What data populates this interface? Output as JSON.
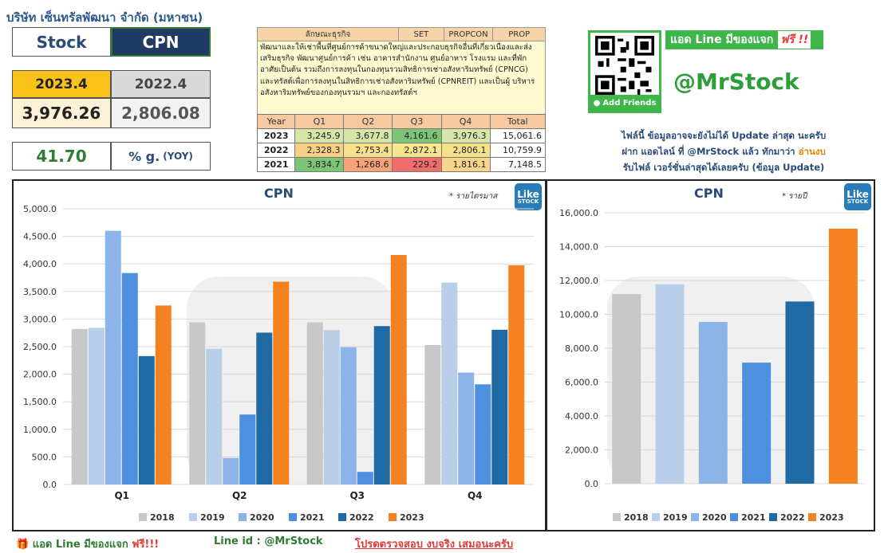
{
  "company": {
    "name": "บริษัท เซ็นทรัลพัฒนา จำกัด (มหาชน)"
  },
  "stock": {
    "label": "Stock",
    "code": "CPN"
  },
  "quarters": {
    "current_label": "2023.4",
    "previous_label": "2022.4",
    "current_value": "3,976.26",
    "previous_value": "2,806.08"
  },
  "growth": {
    "value": "41.70",
    "label": "% g.",
    "suffix": "(YOY)"
  },
  "business": {
    "headers": [
      "ลักษณะธุรกิจ",
      "SET",
      "PROPCON",
      "PROP"
    ],
    "description": "พัฒนาและให้เช่าพื้นที่ศูนย์การค้าขนาดใหญ่และประกอบธุรกิจอื่นที่เกี่ยวเนื่องและส่งเสริมธุรกิจ พัฒนาศูนย์การค้า เช่น อาคารสำนักงาน ศูนย์อาหาร โรงแรม และที่พักอาศัยเป็นต้น รวมถึงการลงทุนในกองทุนรวมสิทธิการเช่าอสังหาริมทรัพย์ (CPNCG) และทรัสต์เพื่อการลงทุนในสิทธิการเช่าอสังหาริมทรัพย์ (CPNREIT) และเป็นผู้ บริหารอสังหาริมทรัพย์ของกองทุนรวมฯ และกองทรัสต์ฯ"
  },
  "financials": {
    "headers": [
      "Year",
      "Q1",
      "Q2",
      "Q3",
      "Q4",
      "Total"
    ],
    "rows": [
      {
        "year": "2023",
        "q": [
          "3,245.9",
          "3,677.8",
          "4,161.6",
          "3,976.3"
        ],
        "total": "15,061.6",
        "colors": [
          "#d6e6a8",
          "#d6e6a8",
          "#7cc576",
          "#d6e6a8"
        ]
      },
      {
        "year": "2022",
        "q": [
          "2,328.3",
          "2,753.4",
          "2,872.1",
          "2,806.1"
        ],
        "total": "10,759.9",
        "colors": [
          "#f8cf86",
          "#f8e08e",
          "#f7e48e",
          "#f5e08c"
        ]
      },
      {
        "year": "2021",
        "q": [
          "3,834.7",
          "1,268.6",
          "229.2",
          "1,816.1"
        ],
        "total": "7,148.5",
        "colors": [
          "#7cc576",
          "#f8a27a",
          "#f26d6d",
          "#f8d58a"
        ]
      }
    ]
  },
  "promo": {
    "line_banner": "แอด Line มีของแจก",
    "free_tag": "ฟรี !!",
    "add_friends": "Add Friends",
    "handle": "@MrStock",
    "notice_1": "ไฟล์นี้ ข้อมูลอาจจะยังไม่ได้ Update ล่าสุด นะครับ",
    "notice_2a": "ฝาก แอดไลน์ ที่ @MrStock แล้ว ทักมาว่า ",
    "notice_2b": "อ่านงบ",
    "notice_3": "รับไฟล์ เวอร์ชั่นล่าสุดได้เลยครับ (ข้อมูล Update)"
  },
  "logo": {
    "line1": "Like",
    "line2": "STOCK"
  },
  "colors": {
    "y2018": "#c8c8c8",
    "y2019": "#b9cfe9",
    "y2020": "#8db4e8",
    "y2021": "#4f8fe0",
    "y2022": "#1f6aa5",
    "y2023": "#f58220"
  },
  "chart_data": [
    {
      "type": "bar",
      "title": "CPN",
      "note": "* รายไตรมาส",
      "categories": [
        "Q1",
        "Q2",
        "Q3",
        "Q4"
      ],
      "series": [
        {
          "name": "2018",
          "values": [
            2820,
            2940,
            2940,
            2530
          ]
        },
        {
          "name": "2019",
          "values": [
            2840,
            2460,
            2800,
            3660
          ]
        },
        {
          "name": "2020",
          "values": [
            4600,
            480,
            2490,
            2030
          ]
        },
        {
          "name": "2021",
          "values": [
            3834.7,
            1268.6,
            229.2,
            1816.1
          ]
        },
        {
          "name": "2022",
          "values": [
            2328.3,
            2753.4,
            2872.1,
            2806.1
          ]
        },
        {
          "name": "2023",
          "values": [
            3245.9,
            3677.8,
            4161.6,
            3976.3
          ]
        }
      ],
      "yticks": [
        "5,000.0",
        "4,500.0",
        "4,000.0",
        "3,500.0",
        "3,000.0",
        "2,500.0",
        "2,000.0",
        "1,500.0",
        "1,000.0",
        "500.0",
        "0.0"
      ],
      "ylim": [
        0,
        5000
      ],
      "grid": true,
      "legend": "bottom"
    },
    {
      "type": "bar",
      "title": "CPN",
      "note": "* รายปี",
      "categories": [
        "2018",
        "2019",
        "2020",
        "2021",
        "2022",
        "2023"
      ],
      "values": [
        11200,
        11780,
        9550,
        7148.5,
        10759.9,
        15061.6
      ],
      "yticks": [
        "16,000.0",
        "14,000.0",
        "12,000.0",
        "10,000.0",
        "8,000.0",
        "6,000.0",
        "4,000.0",
        "2,000.0",
        "0.0"
      ],
      "ylim": [
        0,
        16000
      ],
      "grid": true,
      "legend": "bottom"
    }
  ],
  "footer": {
    "line_add": "แอด Line มีของแจก",
    "free": "ฟรี!!!",
    "line_id": "Line id : @MrStock",
    "check": "โปรดตรวจสอบ งบจริง เสมอนะครับ"
  }
}
